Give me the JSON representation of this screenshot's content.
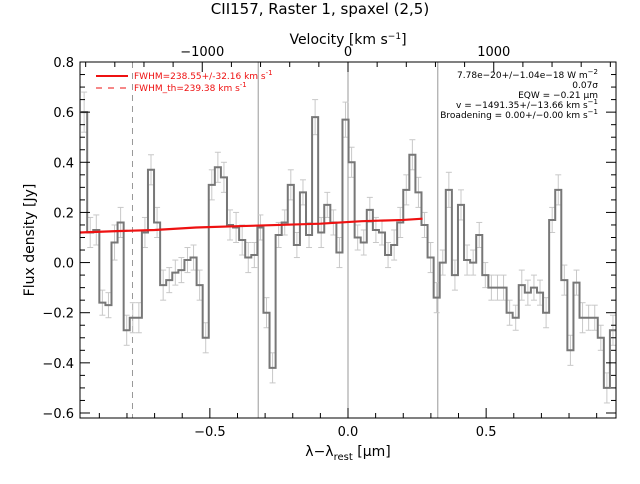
{
  "chart_data": {
    "type": "line",
    "title": "CII157, Raster 1, spaxel (2,5)",
    "xlabel": "λ−λrest [μm]",
    "xlabel_parts": {
      "main": "λ−λ",
      "sub": "rest",
      "tail": " [μm]"
    },
    "ylabel": "Flux density [Jy]",
    "top_axis_label": "Velocity [km s⁻¹]",
    "top_axis_label_parts": {
      "main": "Velocity [km s",
      "sup": "−1",
      "tail": "]"
    },
    "xlim": [
      -0.97,
      0.97
    ],
    "ylim": [
      -0.62,
      0.8
    ],
    "x_ticks": [
      -0.5,
      0.0,
      0.5
    ],
    "x_tick_labels": [
      "−0.5",
      "0.0",
      "0.5"
    ],
    "y_ticks": [
      -0.6,
      -0.4,
      -0.2,
      0.0,
      0.2,
      0.4,
      0.6,
      0.8
    ],
    "y_tick_labels": [
      "−0.6",
      "−0.4",
      "−0.2",
      "0.0",
      "0.2",
      "0.4",
      "0.6",
      "0.8"
    ],
    "top_ticks": [
      -1000,
      0,
      1000
    ],
    "top_tick_labels": [
      "−1000",
      "0",
      "1000"
    ],
    "vertical_lines_solid": [
      -0.325,
      0.0,
      0.325
    ],
    "vertical_lines_dashed": [
      -0.78
    ],
    "series": [
      {
        "name": "Flux density",
        "style": "step",
        "color": "#777777",
        "x": [
          -0.955,
          -0.933,
          -0.911,
          -0.889,
          -0.867,
          -0.845,
          -0.823,
          -0.801,
          -0.779,
          -0.757,
          -0.735,
          -0.713,
          -0.691,
          -0.669,
          -0.647,
          -0.625,
          -0.603,
          -0.581,
          -0.559,
          -0.537,
          -0.515,
          -0.493,
          -0.471,
          -0.449,
          -0.427,
          -0.405,
          -0.383,
          -0.361,
          -0.339,
          -0.317,
          -0.295,
          -0.273,
          -0.251,
          -0.229,
          -0.207,
          -0.185,
          -0.163,
          -0.141,
          -0.119,
          -0.097,
          -0.075,
          -0.053,
          -0.031,
          -0.009,
          0.013,
          0.035,
          0.057,
          0.079,
          0.101,
          0.123,
          0.145,
          0.167,
          0.189,
          0.211,
          0.233,
          0.255,
          0.277,
          0.299,
          0.321,
          0.343,
          0.365,
          0.387,
          0.409,
          0.431,
          0.453,
          0.475,
          0.497,
          0.519,
          0.541,
          0.563,
          0.585,
          0.607,
          0.629,
          0.651,
          0.673,
          0.695,
          0.717,
          0.739,
          0.761,
          0.783,
          0.805,
          0.827,
          0.849,
          0.871,
          0.893,
          0.915,
          0.937,
          0.959
        ],
        "values": [
          0.6,
          0.12,
          0.13,
          -0.16,
          -0.17,
          0.08,
          0.16,
          -0.27,
          -0.22,
          -0.22,
          0.12,
          0.37,
          0.16,
          -0.09,
          -0.07,
          -0.04,
          -0.03,
          0.01,
          0.02,
          -0.09,
          -0.3,
          0.31,
          0.38,
          0.34,
          0.15,
          0.14,
          0.09,
          0.02,
          0.03,
          0.14,
          -0.2,
          -0.42,
          0.11,
          0.16,
          0.31,
          0.07,
          0.28,
          0.11,
          0.58,
          0.12,
          0.23,
          0.16,
          0.04,
          0.57,
          0.4,
          0.1,
          0.08,
          0.21,
          0.13,
          0.12,
          0.03,
          0.07,
          0.16,
          0.29,
          0.43,
          0.28,
          0.15,
          0.02,
          -0.14,
          0.0,
          0.29,
          -0.05,
          0.23,
          0.01,
          0.0,
          0.11,
          -0.05,
          -0.1,
          -0.1,
          -0.1,
          -0.2,
          -0.22,
          -0.09,
          -0.12,
          -0.1,
          -0.12,
          -0.2,
          0.17,
          0.29,
          -0.07,
          -0.35,
          -0.08,
          -0.22,
          -0.22,
          -0.22,
          -0.3,
          -0.5,
          -0.27
        ]
      },
      {
        "name": "FWHM=238.55+/-32.16 km s⁻¹",
        "style": "line",
        "color": "#ee1111",
        "x": [
          -0.97,
          -0.85,
          -0.7,
          -0.55,
          -0.4,
          -0.25,
          -0.1,
          0.05,
          0.2,
          0.27
        ],
        "values": [
          0.12,
          0.125,
          0.13,
          0.14,
          0.145,
          0.15,
          0.155,
          0.165,
          0.17,
          0.175
        ]
      }
    ],
    "error_bars": {
      "color": "#c8c8c8",
      "errors": [
        0.08,
        0.06,
        0.06,
        0.05,
        0.05,
        0.07,
        0.06,
        0.06,
        0.06,
        0.06,
        0.06,
        0.06,
        0.06,
        0.06,
        0.05,
        0.05,
        0.05,
        0.05,
        0.05,
        0.06,
        0.06,
        0.06,
        0.06,
        0.06,
        0.06,
        0.06,
        0.06,
        0.06,
        0.05,
        0.05,
        0.06,
        0.06,
        0.05,
        0.05,
        0.06,
        0.05,
        0.05,
        0.05,
        0.07,
        0.06,
        0.05,
        0.05,
        0.06,
        0.07,
        0.06,
        0.05,
        0.05,
        0.05,
        0.05,
        0.05,
        0.05,
        0.06,
        0.06,
        0.06,
        0.06,
        0.06,
        0.05,
        0.06,
        0.06,
        0.05,
        0.07,
        0.06,
        0.06,
        0.06,
        0.05,
        0.05,
        0.05,
        0.05,
        0.05,
        0.05,
        0.05,
        0.05,
        0.06,
        0.05,
        0.05,
        0.05,
        0.06,
        0.05,
        0.06,
        0.06,
        0.06,
        0.05,
        0.06,
        0.05,
        0.05,
        0.05,
        0.06,
        0.06
      ]
    },
    "legend": {
      "placement": "top-left",
      "entries": [
        {
          "label": "FWHM=238.55+/-32.16 km s",
          "sup": "-1",
          "color": "#ee1111",
          "style": "solid"
        },
        {
          "label": "FWHM_th=239.38 km s",
          "sup": "-1",
          "color": "#ee1111",
          "style": "dashed"
        }
      ]
    },
    "annotations": {
      "placement": "top-right",
      "lines": [
        {
          "text": "7.78e−20+/−1.04e−18 W m",
          "sup": "−2"
        },
        {
          "text": "0.07σ",
          "sup": ""
        },
        {
          "text": "EQW = −0.21 μm",
          "sup": ""
        },
        {
          "text": "v = −1491.35+/−13.66 km s",
          "sup": "−1"
        },
        {
          "text": "Broadening = 0.00+/−0.00 km s",
          "sup": "−1"
        }
      ]
    },
    "grid": false
  }
}
